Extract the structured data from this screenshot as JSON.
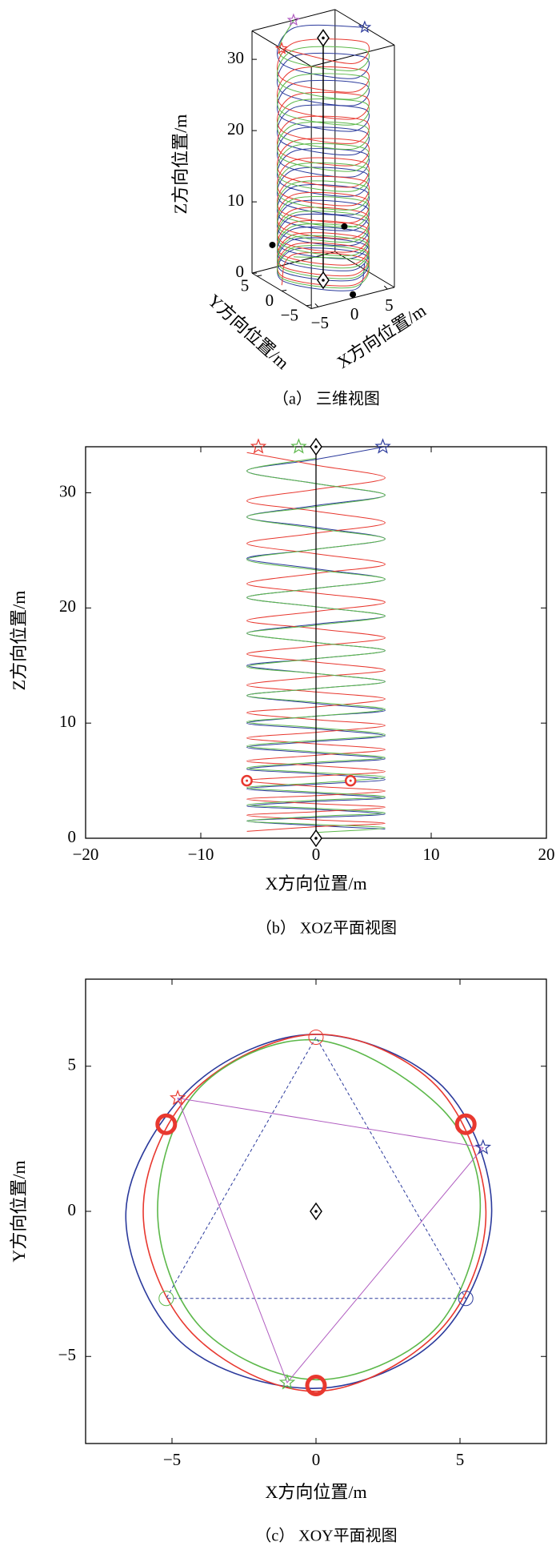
{
  "chart_data": [
    {
      "type": "scatter3d",
      "caption": "（a） 三维视图",
      "xlabel": "X方向位置/m",
      "ylabel": "Y方向位置/m",
      "zlabel": "Z方向位置/m",
      "xlim": [
        -6,
        6
      ],
      "ylim": [
        -6,
        6
      ],
      "zlim": [
        0,
        34
      ],
      "xticks": [
        {
          "value": -5,
          "label": "−5"
        },
        0,
        5
      ],
      "yticks": [
        {
          "value": -5,
          "label": "−5"
        },
        0,
        5
      ],
      "zticks": [
        0,
        10,
        20,
        30
      ],
      "series": [
        {
          "color": "#2b3a9c",
          "x": [
            6,
            0,
            -6,
            0,
            6,
            0,
            -6,
            0,
            6,
            0,
            -6,
            0,
            6,
            0,
            -6,
            0,
            6,
            0,
            -6,
            0,
            6,
            0,
            -6,
            0,
            6,
            0,
            -6,
            0,
            6,
            0,
            -6,
            0,
            6,
            0,
            -6,
            0,
            6,
            0,
            -6,
            0,
            6,
            0,
            -6,
            0,
            6,
            0,
            -6,
            0,
            6,
            0,
            -6,
            0,
            6
          ],
          "y": [
            0,
            6,
            0,
            -6,
            0,
            6,
            0,
            -6,
            0,
            6,
            0,
            -6,
            0,
            6,
            0,
            -6,
            0,
            6,
            0,
            -6,
            0,
            6,
            0,
            -6,
            0,
            6,
            0,
            -6,
            0,
            6,
            0,
            -6,
            0,
            6,
            0,
            -6,
            0,
            6,
            0,
            -6,
            0,
            6,
            0,
            -6,
            0,
            6,
            0,
            -6,
            0,
            6,
            0,
            -6,
            0
          ],
          "z": [
            34,
            32.9,
            31.9,
            30.8,
            29.8,
            28.9,
            27.9,
            27,
            26,
            25.1,
            24.3,
            23.4,
            22.5,
            21.7,
            20.9,
            20.1,
            19.3,
            18.6,
            17.8,
            17,
            16.3,
            15.6,
            15,
            14.3,
            13.6,
            13,
            12.4,
            11.7,
            11.1,
            10.6,
            10,
            9.5,
            8.9,
            8.4,
            7.9,
            7.4,
            6.9,
            6.5,
            6,
            5.6,
            5.1,
            4.7,
            4.3,
            3.9,
            3.5,
            3.2,
            2.8,
            2.5,
            2.1,
            1.8,
            1.5,
            1.1,
            0.8
          ]
        },
        {
          "color": "#e8382f",
          "x": [
            -6,
            0,
            6,
            0,
            -6,
            0,
            6,
            0,
            -6,
            0,
            6,
            0,
            -6,
            0,
            6,
            0,
            -6,
            0,
            6,
            0,
            -6,
            0,
            6,
            0,
            -6,
            0,
            6,
            0,
            -6,
            0,
            6,
            0,
            -6,
            0,
            6,
            0,
            -6,
            0,
            6,
            0,
            -6,
            0,
            6,
            0,
            -6,
            0,
            6,
            0,
            -6,
            0,
            6,
            0,
            -6
          ],
          "y": [
            0,
            -6,
            0,
            6,
            0,
            -6,
            0,
            6,
            0,
            -6,
            0,
            6,
            0,
            -6,
            0,
            6,
            0,
            -6,
            0,
            6,
            0,
            -6,
            0,
            6,
            0,
            -6,
            0,
            6,
            0,
            -6,
            0,
            6,
            0,
            -6,
            0,
            6,
            0,
            -6,
            0,
            6,
            0,
            -6,
            0,
            6,
            0,
            -6,
            0,
            6,
            0,
            -6,
            0,
            6,
            0
          ],
          "z": [
            34,
            32.9,
            31.9,
            30.8,
            29.8,
            28.9,
            27.9,
            27,
            26,
            25.1,
            24.3,
            23.4,
            22.5,
            21.7,
            20.9,
            20.1,
            19.3,
            18.6,
            17.8,
            17,
            16.3,
            15.6,
            15,
            14.3,
            13.6,
            13,
            12.4,
            11.7,
            11.1,
            10.6,
            10,
            9.5,
            8.9,
            8.4,
            7.9,
            7.4,
            6.9,
            6.5,
            6,
            5.6,
            5.1,
            4.7,
            4.3,
            3.9,
            3.5,
            3.2,
            2.8,
            2.5,
            2.1,
            1.8,
            1.5,
            1.1,
            0.8
          ]
        },
        {
          "color": "#5cb84a",
          "x": [
            0,
            -6,
            0,
            6,
            0,
            -6,
            0,
            6,
            0,
            -6,
            0,
            6,
            0,
            -6,
            0,
            6,
            0,
            -6,
            0,
            6,
            0,
            -6,
            0,
            6,
            0,
            -6,
            0,
            6,
            0,
            -6,
            0,
            6,
            0,
            -6,
            0,
            6,
            0,
            -6,
            0,
            6,
            0,
            -6,
            0,
            6,
            0,
            -6,
            0,
            6,
            0,
            -6,
            0,
            6,
            0
          ],
          "y": [
            6,
            0,
            -6,
            0,
            6,
            0,
            -6,
            0,
            6,
            0,
            -6,
            0,
            6,
            0,
            -6,
            0,
            6,
            0,
            -6,
            0,
            6,
            0,
            -6,
            0,
            6,
            0,
            -6,
            0,
            6,
            0,
            -6,
            0,
            6,
            0,
            -6,
            0,
            6,
            0,
            -6,
            0,
            6,
            0,
            -6,
            0,
            6,
            0,
            -6,
            0,
            6,
            0,
            -6,
            0,
            6
          ],
          "z": [
            34,
            32.9,
            31.9,
            30.8,
            29.8,
            28.9,
            27.9,
            27,
            26,
            25.1,
            24.3,
            23.4,
            22.5,
            21.7,
            20.9,
            20.1,
            19.3,
            18.6,
            17.8,
            17,
            16.3,
            15.6,
            15,
            14.3,
            13.6,
            13,
            12.4,
            11.7,
            11.1,
            10.6,
            10,
            9.5,
            8.9,
            8.4,
            7.9,
            7.4,
            6.9,
            6.5,
            6,
            5.6,
            5.1,
            4.7,
            4.3,
            3.9,
            3.5,
            3.2,
            2.8,
            2.5,
            2.1,
            1.8,
            1.5,
            1.1,
            0.8
          ]
        }
      ],
      "guide": {
        "color": "#000000",
        "x": [
          0,
          0
        ],
        "y": [
          0,
          0
        ],
        "z": [
          0,
          34
        ]
      },
      "diamonds": {
        "color": "#000000",
        "x": [
          0,
          0
        ],
        "y": [
          0,
          0
        ],
        "z": [
          0,
          34
        ]
      },
      "stars": {
        "colors": [
          "#2b3a9c",
          "#e8382f",
          "#b05cc0"
        ],
        "x": [
          6,
          -6,
          0
        ],
        "y": [
          0,
          0,
          6
        ],
        "z": [
          34,
          34,
          34
        ]
      },
      "dots": {
        "color": "#000000",
        "x": [
          -5.2,
          5.2,
          0
        ],
        "y": [
          3,
          3,
          -6
        ],
        "z": [
          5,
          5,
          0.5
        ]
      }
    },
    {
      "type": "line",
      "caption": "（b） XOZ平面视图",
      "xlabel": "X方向位置/m",
      "ylabel": "Z方向位置/m",
      "xlim": [
        -20,
        20
      ],
      "ylim": [
        0,
        34
      ],
      "xticks": [
        {
          "value": -20,
          "label": "−20"
        },
        {
          "value": -10,
          "label": "−10"
        },
        0,
        10,
        20
      ],
      "yticks": [
        0,
        10,
        20,
        30
      ],
      "closed": false,
      "series": [
        {
          "color": "#2b3a9c",
          "x": [
            6,
            0,
            -6,
            0,
            6,
            0,
            -6,
            0,
            6,
            0,
            -6,
            0,
            6,
            0,
            -6,
            0,
            6,
            0,
            -6,
            0,
            6,
            0,
            -6,
            0,
            6,
            0,
            -6,
            0,
            6,
            0,
            -6,
            0,
            6,
            0,
            -6,
            0,
            6,
            0,
            -6,
            0,
            6,
            0,
            -6,
            0,
            6,
            0,
            -6,
            0,
            6,
            0,
            -6,
            0,
            6
          ],
          "values": [
            34,
            32.9,
            31.9,
            30.8,
            29.8,
            28.9,
            27.9,
            27,
            26,
            25.1,
            24.3,
            23.4,
            22.5,
            21.7,
            20.9,
            20.1,
            19.3,
            18.6,
            17.8,
            17,
            16.3,
            15.6,
            15,
            14.3,
            13.6,
            13,
            12.4,
            11.7,
            11.1,
            10.6,
            10,
            9.5,
            8.9,
            8.4,
            7.9,
            7.4,
            6.9,
            6.5,
            6,
            5.6,
            5.1,
            4.7,
            4.3,
            3.9,
            3.5,
            3.2,
            2.8,
            2.5,
            2.1,
            1.8,
            1.5,
            1.1,
            0.8
          ]
        },
        {
          "color": "#e8382f",
          "x": [
            -6,
            0,
            6,
            0,
            -6,
            0,
            6,
            0,
            -6,
            0,
            6,
            0,
            -6,
            0,
            6,
            0,
            -6,
            0,
            6,
            0,
            -6,
            0,
            6,
            0,
            -6,
            0,
            6,
            0,
            -6,
            0,
            6,
            0,
            -6,
            0,
            6,
            0,
            -6,
            0,
            6,
            0,
            -6,
            0,
            6,
            0,
            -6,
            0,
            6,
            0,
            -6,
            0,
            6,
            0,
            -6
          ],
          "values": [
            33.5,
            32.4,
            31.3,
            30.3,
            29.3,
            28.4,
            27.4,
            26.5,
            25.6,
            24.7,
            23.8,
            23,
            22.1,
            21.3,
            20.5,
            19.7,
            18.9,
            18.2,
            17.4,
            16.7,
            16,
            15.3,
            14.6,
            14,
            13.3,
            12.7,
            12.1,
            11.4,
            10.9,
            10.3,
            9.8,
            9.2,
            8.7,
            8.2,
            7.7,
            7.2,
            6.7,
            6.3,
            5.8,
            5.4,
            5,
            4.5,
            4.1,
            3.7,
            3.4,
            3,
            2.7,
            2.3,
            2,
            1.6,
            1.3,
            1,
            0.6
          ]
        },
        {
          "color": "#5cb84a",
          "x": [
            0,
            -6,
            0,
            6,
            0,
            -6,
            0,
            6,
            0,
            -6,
            0,
            6,
            0,
            -6,
            0,
            6,
            0,
            -6,
            0,
            6,
            0,
            -6,
            0,
            6,
            0,
            -6,
            0,
            6,
            0,
            -6,
            0,
            6,
            0,
            -6,
            0,
            6,
            0,
            -6,
            0,
            6,
            0,
            -6,
            0,
            6,
            0,
            -6,
            0,
            6,
            0,
            -6,
            0,
            6,
            0
          ],
          "values": [
            33,
            31.9,
            30.8,
            29.8,
            28.8,
            27.9,
            26.9,
            26,
            25.1,
            24.2,
            23.3,
            22.5,
            21.7,
            20.9,
            20.1,
            19.3,
            18.5,
            17.8,
            17,
            16.3,
            15.6,
            14.9,
            14.3,
            13.6,
            13,
            12.4,
            11.8,
            11.2,
            10.6,
            10.1,
            9.6,
            9,
            8.5,
            8,
            7.5,
            7,
            6.6,
            6.1,
            5.7,
            5.3,
            4.8,
            4.4,
            4,
            3.6,
            3.3,
            2.9,
            2.6,
            2.2,
            1.9,
            1.5,
            1.2,
            0.9,
            0.5
          ]
        }
      ],
      "guide": {
        "color": "#000000",
        "x": [
          0,
          0
        ],
        "values": [
          0,
          34
        ]
      },
      "diamonds": {
        "color": "#000000",
        "x": [
          0,
          0
        ],
        "values": [
          0,
          34
        ]
      },
      "stars": {
        "colors": [
          "#e8382f",
          "#5cb84a",
          "#2b3a9c"
        ],
        "x": [
          -5,
          -1.5,
          5.8
        ],
        "values": [
          34,
          34,
          34
        ]
      },
      "rings": {
        "color": "#e8382f",
        "x": [
          -6,
          3
        ],
        "values": [
          5,
          5
        ]
      }
    },
    {
      "type": "line",
      "caption": "（c） XOY平面视图",
      "xlabel": "X方向位置/m",
      "ylabel": "Y方向位置/m",
      "xlim": [
        -8,
        8
      ],
      "ylim": [
        -8,
        8
      ],
      "xticks": [
        {
          "value": -5,
          "label": "−5"
        },
        0,
        5
      ],
      "yticks": [
        {
          "value": -5,
          "label": "−5"
        },
        0,
        5
      ],
      "closed": true,
      "series": [
        {
          "color": "#2b3a9c",
          "x": [
            6.1,
            4.4,
            0,
            -4.3,
            -6.6,
            -4.7,
            0,
            4.3,
            6.1
          ],
          "values": [
            0,
            4.3,
            6.1,
            4.3,
            0,
            -4.5,
            -6.1,
            -4.3,
            0
          ]
        },
        {
          "color": "#e8382f",
          "x": [
            5.9,
            4.2,
            0,
            -4.3,
            -6,
            -4.3,
            0,
            4.3,
            5.9
          ],
          "values": [
            0,
            4.3,
            6.1,
            4.1,
            0,
            -4.2,
            -6.2,
            -4.1,
            0
          ]
        },
        {
          "color": "#5cb84a",
          "x": [
            5.7,
            4.4,
            0,
            -4.1,
            -5.5,
            -4,
            0,
            4.1,
            5.7
          ],
          "values": [
            0,
            3.5,
            5.9,
            4.2,
            0,
            -4,
            -5.8,
            -4.1,
            0
          ]
        }
      ],
      "diamonds": {
        "color": "#000000",
        "x": [
          0
        ],
        "values": [
          0
        ]
      },
      "rings": {
        "color": "#e8382f",
        "x": [
          -5.2,
          5.2,
          0
        ],
        "values": [
          3,
          3,
          -6
        ]
      },
      "polygons": [
        {
          "color": "#2b3a9c",
          "dashed": true,
          "marker": "circle",
          "marker_colors": [
            "#e8382f",
            "#5cb84a",
            "#2b3a9c"
          ],
          "x": [
            0,
            -5.2,
            5.2
          ],
          "values": [
            6,
            -3,
            -3
          ]
        },
        {
          "color": "#b05cc0",
          "dashed": false,
          "marker": "star",
          "marker_colors": [
            "#e8382f",
            "#2b3a9c",
            "#5cb84a"
          ],
          "x": [
            -4.8,
            5.8,
            -1
          ],
          "values": [
            3.9,
            2.2,
            -5.9
          ]
        }
      ]
    }
  ]
}
